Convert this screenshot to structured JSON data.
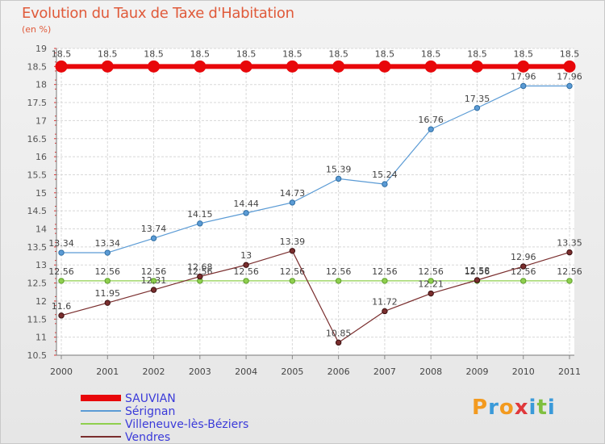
{
  "header": {
    "title": "Evolution du Taux de Taxe d'Habitation",
    "unit": "(en %)"
  },
  "logo": {
    "text": "Proxiti",
    "colors": [
      "#f39a1f",
      "#3a9ad9",
      "#f39a1f",
      "#e0383b",
      "#3a9ad9",
      "#7fbf3f",
      "#3a9ad9"
    ]
  },
  "chart_data": {
    "type": "line",
    "categories": [
      "2000",
      "2001",
      "2002",
      "2003",
      "2004",
      "2005",
      "2006",
      "2007",
      "2008",
      "2009",
      "2010",
      "2011"
    ],
    "ylim": [
      10.5,
      19
    ],
    "yticks": [
      "10.5",
      "11",
      "11.5",
      "12",
      "12.5",
      "13",
      "13.5",
      "14",
      "14.5",
      "15",
      "15.5",
      "16",
      "16.5",
      "17",
      "17.5",
      "18",
      "18.5",
      "19"
    ],
    "grid": true,
    "legend_position": "bottom-left",
    "series": [
      {
        "name": "SAUVIAN",
        "color": "#e8070a",
        "values": [
          18.5,
          18.5,
          18.5,
          18.5,
          18.5,
          18.5,
          18.5,
          18.5,
          18.5,
          18.5,
          18.5,
          18.5
        ],
        "labels": [
          "18.5",
          "18.5",
          "18.5",
          "18.5",
          "18.5",
          "18.5",
          "18.5",
          "18.5",
          "18.5",
          "18.5",
          "18.5",
          "18.5"
        ]
      },
      {
        "name": "Sérignan",
        "color": "#5b9bd5",
        "values": [
          13.34,
          13.34,
          13.74,
          14.15,
          14.44,
          14.73,
          15.39,
          15.24,
          16.76,
          17.35,
          17.96,
          17.96
        ],
        "labels": [
          "13.34",
          "13.34",
          "13.74",
          "14.15",
          "14.44",
          "14.73",
          "15.39",
          "15.24",
          "16.76",
          "17.35",
          "17.96",
          "17.96"
        ]
      },
      {
        "name": "Villeneuve-lès-Béziers",
        "color": "#8fcf4e",
        "values": [
          12.56,
          12.56,
          12.56,
          12.56,
          12.56,
          12.56,
          12.56,
          12.56,
          12.56,
          12.56,
          12.56,
          12.56
        ],
        "labels": [
          "12.56",
          "12.56",
          "12.56",
          "12.56",
          "12.56",
          "12.56",
          "12.56",
          "12.56",
          "12.56",
          "12.56",
          "12.56",
          "12.56"
        ]
      },
      {
        "name": "Vendres",
        "color": "#7a2e2e",
        "values": [
          11.6,
          11.95,
          12.31,
          12.68,
          13,
          13.39,
          10.85,
          11.72,
          12.21,
          12.58,
          12.96,
          13.35
        ],
        "labels": [
          "11.6",
          "11.95",
          "12.31",
          "12.68",
          "13",
          "13.39",
          "10.85",
          "11.72",
          "12.21",
          "12.58",
          "12.96",
          "13.35"
        ]
      }
    ]
  }
}
